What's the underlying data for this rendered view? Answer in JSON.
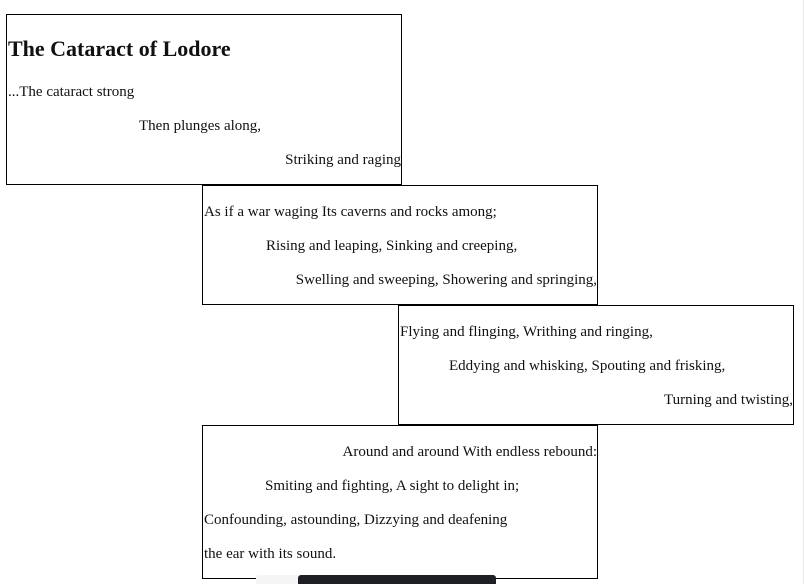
{
  "poem": {
    "title": "The Cataract of Lodore",
    "stanzas": [
      {
        "lines": [
          "...The cataract strong",
          "Then plunges along,",
          "Striking and raging"
        ]
      },
      {
        "lines": [
          "As if a war waging Its caverns and rocks among;",
          "Rising and leaping, Sinking and creeping,",
          "Swelling and sweeping, Showering and springing,"
        ]
      },
      {
        "lines": [
          "Flying and flinging, Writhing and ringing,",
          "Eddying and whisking, Spouting and frisking,",
          "Turning and twisting,"
        ]
      },
      {
        "lines": [
          "Around and around With endless rebound:",
          "Smiting and fighting, A sight to delight in;",
          "Confounding, astounding, Dizzying and deafening",
          "the ear with its sound."
        ]
      }
    ]
  }
}
